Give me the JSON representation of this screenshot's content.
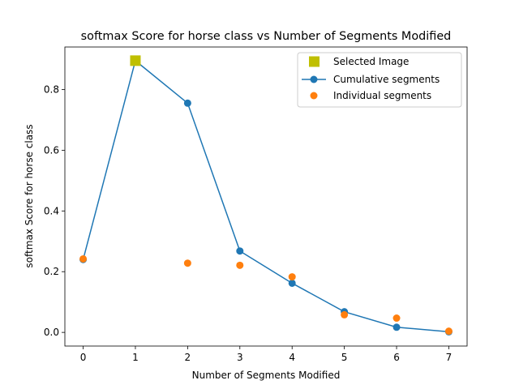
{
  "chart_data": {
    "type": "line",
    "title": "softmax Score for horse class vs Number of Segments Modified",
    "xlabel": "Number of Segments Modified",
    "ylabel": "softmax Score for horse class",
    "xlim": [
      -0.35,
      7.35
    ],
    "ylim": [
      -0.045,
      0.94
    ],
    "xticks": [
      0,
      1,
      2,
      3,
      4,
      5,
      6,
      7
    ],
    "yticks": [
      0.0,
      0.2,
      0.4,
      0.6,
      0.8
    ],
    "ytick_labels": [
      "0.0",
      "0.2",
      "0.4",
      "0.6",
      "0.8"
    ],
    "legend_position": "upper-right",
    "series": [
      {
        "name": "Selected Image",
        "marker": "square",
        "color": "#bfbf00",
        "x": [
          1
        ],
        "y": [
          0.895
        ]
      },
      {
        "name": "Cumulative segments",
        "marker": "circle",
        "line": true,
        "color": "#1f77b4",
        "x": [
          0,
          1,
          2,
          3,
          4,
          5,
          6,
          7
        ],
        "y": [
          0.24,
          0.895,
          0.755,
          0.268,
          0.162,
          0.068,
          0.017,
          0.002
        ]
      },
      {
        "name": "Individual segments",
        "marker": "circle",
        "line": false,
        "color": "#ff7f0e",
        "x": [
          0,
          2,
          3,
          4,
          5,
          6,
          7
        ],
        "y": [
          0.242,
          0.228,
          0.221,
          0.183,
          0.058,
          0.047,
          0.004
        ]
      }
    ]
  }
}
